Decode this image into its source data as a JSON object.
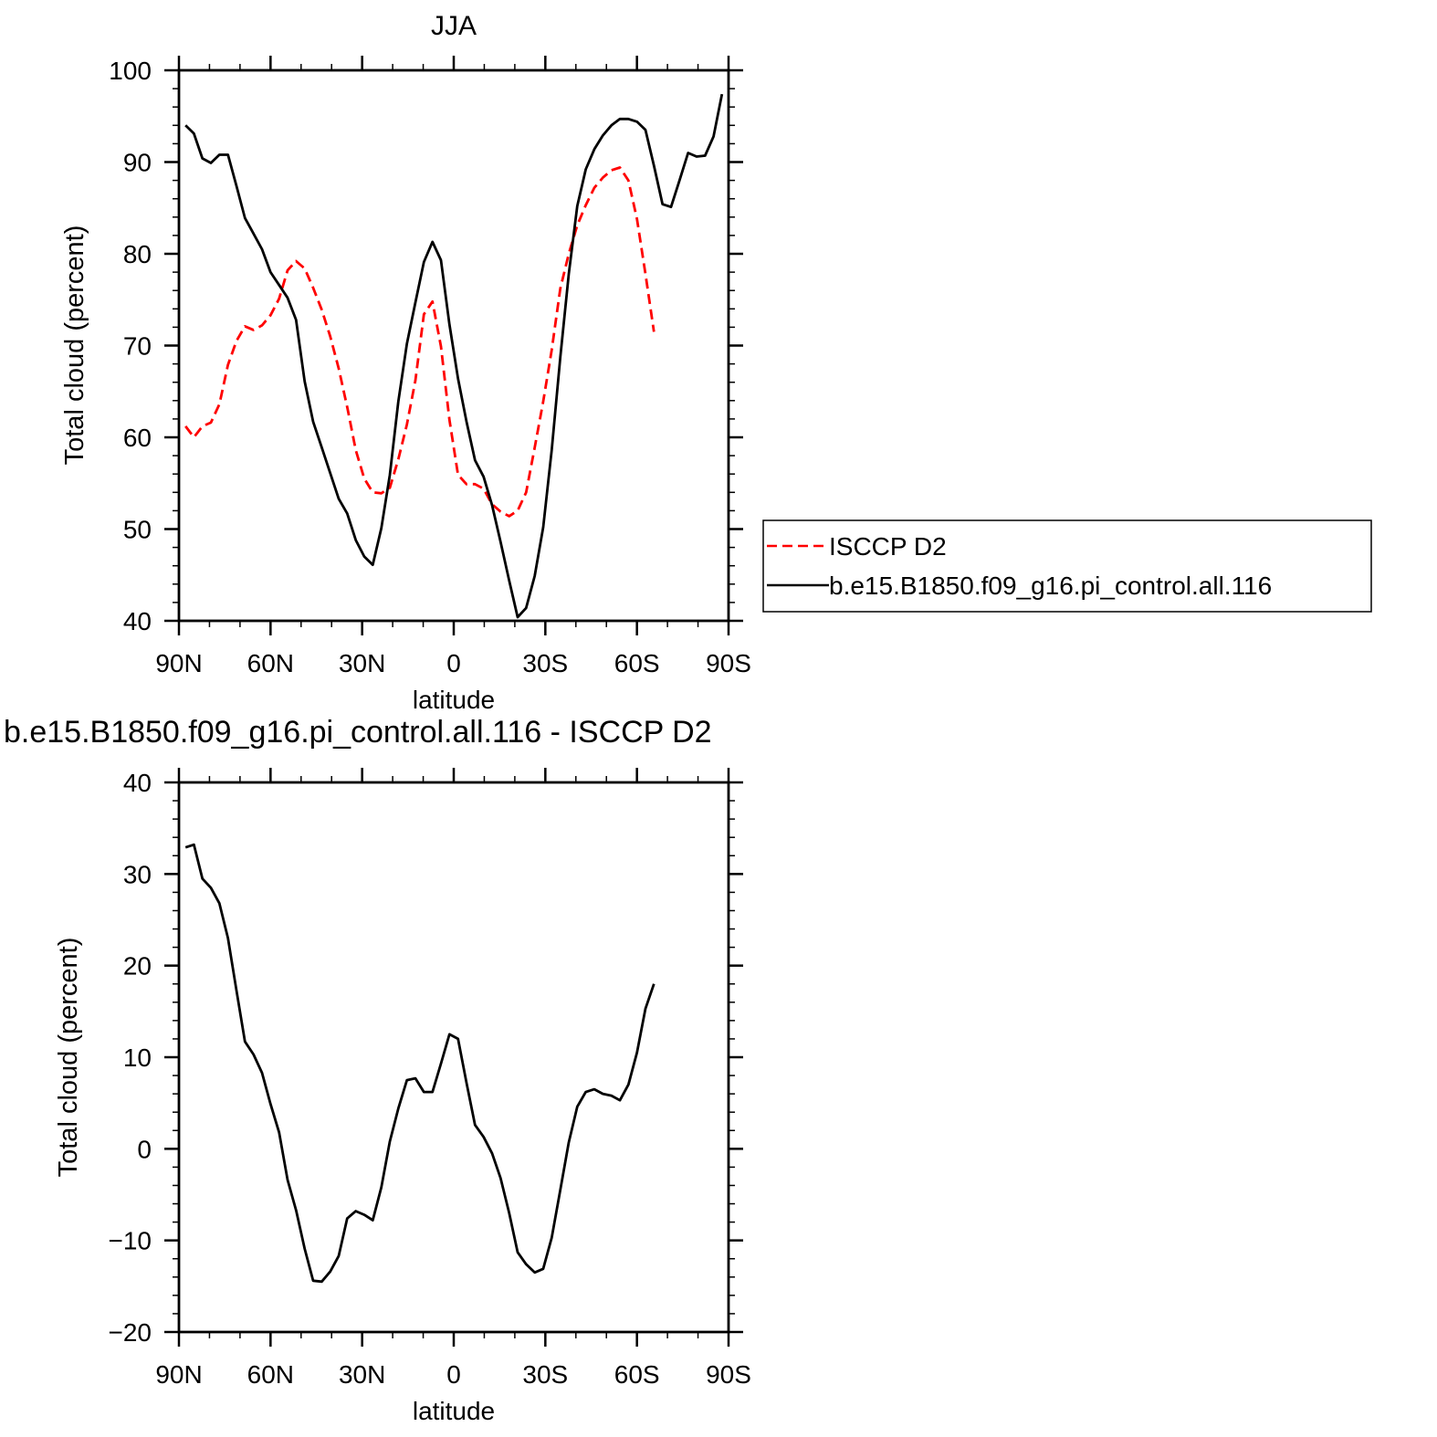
{
  "chart_data": [
    {
      "type": "line",
      "title": "JJA",
      "xlabel": "latitude",
      "ylabel": "Total cloud (percent)",
      "xlim": [
        90,
        -90
      ],
      "ylim": [
        40,
        100
      ],
      "xticks": [
        90,
        60,
        30,
        0,
        -30,
        -60,
        -90
      ],
      "xtick_labels": [
        "90N",
        "60N",
        "30N",
        "0",
        "30S",
        "60S",
        "90S"
      ],
      "yticks": [
        40,
        50,
        60,
        70,
        80,
        90,
        100
      ],
      "ytick_labels": [
        "40",
        "50",
        "60",
        "70",
        "80",
        "90",
        "100"
      ],
      "grid": false,
      "legend": "right",
      "x": [
        87.86,
        85.1,
        82.31,
        79.53,
        76.74,
        73.95,
        71.16,
        68.37,
        65.58,
        62.79,
        60.0,
        57.21,
        54.42,
        51.63,
        48.84,
        46.04,
        43.25,
        40.46,
        37.67,
        34.88,
        32.09,
        29.3,
        26.51,
        23.72,
        20.93,
        18.14,
        15.35,
        12.56,
        9.77,
        6.98,
        4.19,
        1.4,
        -1.4,
        -4.19,
        -6.98,
        -9.77,
        -12.56,
        -15.35,
        -18.14,
        -20.93,
        -23.72,
        -26.51,
        -29.3,
        -32.09,
        -34.88,
        -37.67,
        -40.46,
        -43.25,
        -46.04,
        -48.84,
        -51.63,
        -54.42,
        -57.21,
        -60.0,
        -62.79,
        -65.58,
        -68.37,
        -71.16,
        -73.95,
        -76.74,
        -79.53,
        -82.31,
        -85.1,
        -87.86
      ],
      "series": [
        {
          "name": "ISCCP D2",
          "color": "#ff0000",
          "dash": "dashed",
          "values": [
            61.2,
            60.0,
            61.2,
            61.6,
            63.6,
            67.9,
            70.5,
            72.1,
            71.7,
            72.2,
            73.3,
            75.1,
            78.2,
            79.2,
            78.4,
            76.3,
            73.9,
            71.0,
            67.5,
            63.3,
            58.6,
            55.5,
            54.0,
            53.9,
            54.5,
            57.6,
            61.4,
            66.2,
            73.4,
            74.8,
            69.9,
            61.9,
            55.9,
            54.9,
            54.9,
            54.4,
            52.7,
            51.9,
            51.4,
            52.0,
            54.0,
            58.9,
            63.9,
            69.5,
            76.2,
            80.0,
            83.1,
            85.3,
            87.2,
            88.3,
            89.1,
            89.4,
            88.0,
            83.8,
            77.8,
            71.5,
            null,
            null,
            null,
            null,
            null,
            null,
            null,
            null
          ]
        },
        {
          "name": "b.e15.B1850.f09_g16.pi_control.all.116",
          "color": "#000000",
          "dash": "solid",
          "values": [
            94.0,
            93.1,
            90.4,
            89.9,
            90.8,
            90.8,
            87.4,
            83.9,
            82.2,
            80.5,
            78.0,
            76.6,
            75.2,
            72.8,
            66.1,
            61.7,
            58.9,
            56.1,
            53.3,
            51.7,
            48.8,
            47.0,
            46.1,
            50.1,
            55.9,
            63.9,
            70.2,
            74.7,
            79.1,
            81.3,
            79.3,
            72.3,
            66.4,
            61.7,
            57.5,
            55.7,
            52.6,
            48.6,
            44.4,
            40.4,
            41.4,
            44.9,
            50.2,
            58.6,
            68.7,
            77.8,
            85.2,
            89.2,
            91.4,
            92.9,
            94.0,
            94.7,
            94.7,
            94.4,
            93.5,
            89.6,
            85.4,
            85.1,
            88.0,
            91.0,
            90.6,
            90.7,
            92.8,
            97.4
          ]
        }
      ]
    },
    {
      "type": "line",
      "title": "b.e15.B1850.f09_g16.pi_control.all.116 - ISCCP D2",
      "xlabel": "latitude",
      "ylabel": "Total cloud (percent)",
      "xlim": [
        90,
        -90
      ],
      "ylim": [
        -20,
        40
      ],
      "xticks": [
        90,
        60,
        30,
        0,
        -30,
        -60,
        -90
      ],
      "xtick_labels": [
        "90N",
        "60N",
        "30N",
        "0",
        "30S",
        "60S",
        "90S"
      ],
      "yticks": [
        -20,
        -10,
        0,
        10,
        20,
        30,
        40
      ],
      "ytick_labels": [
        "−20",
        "−10",
        "0",
        "10",
        "20",
        "30",
        "40"
      ],
      "grid": false,
      "x": [
        87.86,
        85.1,
        82.31,
        79.53,
        76.74,
        73.95,
        71.16,
        68.37,
        65.58,
        62.79,
        60.0,
        57.21,
        54.42,
        51.63,
        48.84,
        46.04,
        43.25,
        40.46,
        37.67,
        34.88,
        32.09,
        29.3,
        26.51,
        23.72,
        20.93,
        18.14,
        15.35,
        12.56,
        9.77,
        6.98,
        4.19,
        1.4,
        -1.4,
        -4.19,
        -6.98,
        -9.77,
        -12.56,
        -15.35,
        -18.14,
        -20.93,
        -23.72,
        -26.51,
        -29.3,
        -32.09,
        -34.88,
        -37.67,
        -40.46,
        -43.25,
        -46.04,
        -48.84,
        -51.63,
        -54.42,
        -57.21,
        -60.0,
        -62.79,
        -65.58
      ],
      "series": [
        {
          "color": "#000000",
          "dash": "solid",
          "values": [
            32.9,
            33.2,
            29.5,
            28.5,
            26.8,
            23.0,
            17.3,
            11.7,
            10.3,
            8.3,
            4.9,
            1.8,
            -3.4,
            -6.7,
            -10.9,
            -14.4,
            -14.5,
            -13.4,
            -11.7,
            -7.6,
            -6.8,
            -7.2,
            -7.8,
            -4.2,
            0.8,
            4.4,
            7.5,
            7.7,
            6.2,
            6.2,
            9.3,
            12.5,
            12.0,
            7.2,
            2.6,
            1.3,
            -0.5,
            -3.2,
            -7.0,
            -11.3,
            -12.6,
            -13.5,
            -13.1,
            -9.7,
            -4.5,
            0.7,
            4.6,
            6.2,
            6.5,
            6.0,
            5.8,
            5.3,
            7.0,
            10.5,
            15.3,
            18.0
          ]
        }
      ]
    }
  ]
}
